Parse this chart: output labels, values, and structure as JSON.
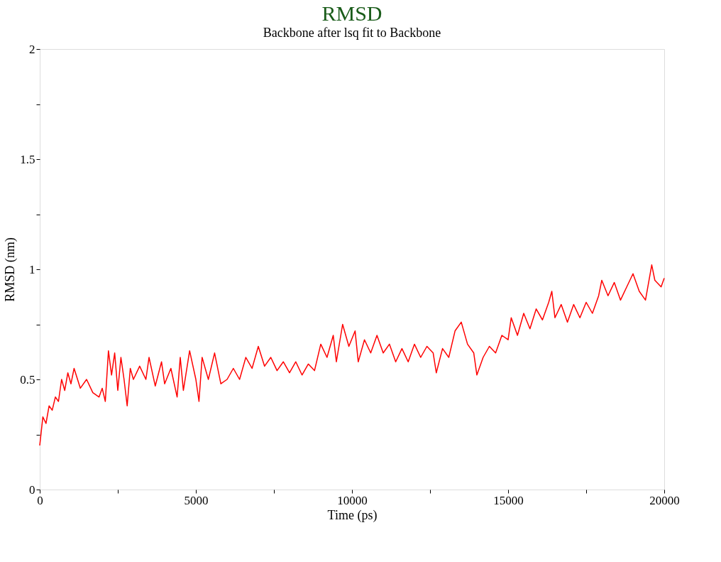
{
  "chart_data": {
    "type": "line",
    "title": "RMSD",
    "subtitle": "Backbone after lsq fit to Backbone",
    "xlabel": "Time (ps)",
    "ylabel": "RMSD (nm)",
    "xlim": [
      0,
      20000
    ],
    "ylim": [
      0,
      2
    ],
    "xticks": [
      0,
      {
        "value": 2500,
        "label": null
      },
      5000,
      {
        "value": 7500,
        "label": null
      },
      10000,
      {
        "value": 12500,
        "label": null
      },
      15000,
      {
        "value": 17500,
        "label": null
      },
      20000
    ],
    "yticks": [
      0,
      {
        "value": 0.25,
        "label": null
      },
      0.5,
      {
        "value": 0.75,
        "label": null
      },
      1,
      {
        "value": 1.25,
        "label": null
      },
      1.5,
      {
        "value": 1.75,
        "label": null
      },
      2
    ],
    "grid": false,
    "marker": "none",
    "line_style": "solid",
    "x": [
      0,
      100,
      200,
      300,
      400,
      500,
      600,
      700,
      800,
      900,
      1000,
      1100,
      1300,
      1500,
      1700,
      1900,
      2000,
      2100,
      2200,
      2300,
      2400,
      2500,
      2600,
      2700,
      2800,
      2900,
      3000,
      3200,
      3400,
      3500,
      3700,
      3900,
      4000,
      4200,
      4400,
      4500,
      4600,
      4800,
      5000,
      5100,
      5200,
      5400,
      5600,
      5800,
      6000,
      6200,
      6400,
      6600,
      6800,
      7000,
      7200,
      7400,
      7600,
      7800,
      8000,
      8200,
      8400,
      8600,
      8800,
      9000,
      9200,
      9400,
      9500,
      9700,
      9900,
      10100,
      10200,
      10400,
      10600,
      10800,
      11000,
      11200,
      11400,
      11600,
      11800,
      12000,
      12200,
      12400,
      12600,
      12700,
      12900,
      13100,
      13300,
      13500,
      13700,
      13900,
      14000,
      14200,
      14400,
      14600,
      14800,
      15000,
      15100,
      15300,
      15500,
      15700,
      15900,
      16100,
      16300,
      16400,
      16500,
      16700,
      16900,
      17100,
      17300,
      17500,
      17700,
      17900,
      18000,
      18200,
      18400,
      18600,
      18800,
      19000,
      19200,
      19400,
      19600,
      19700,
      19900,
      20000
    ],
    "series": [
      {
        "color": "#ff0000",
        "values": [
          0.2,
          0.33,
          0.3,
          0.38,
          0.36,
          0.42,
          0.4,
          0.5,
          0.45,
          0.53,
          0.48,
          0.55,
          0.46,
          0.5,
          0.44,
          0.42,
          0.46,
          0.4,
          0.63,
          0.52,
          0.62,
          0.45,
          0.6,
          0.5,
          0.38,
          0.55,
          0.5,
          0.56,
          0.5,
          0.6,
          0.47,
          0.58,
          0.48,
          0.55,
          0.42,
          0.6,
          0.45,
          0.63,
          0.5,
          0.4,
          0.6,
          0.5,
          0.62,
          0.48,
          0.5,
          0.55,
          0.5,
          0.6,
          0.55,
          0.65,
          0.56,
          0.6,
          0.54,
          0.58,
          0.53,
          0.58,
          0.52,
          0.57,
          0.54,
          0.66,
          0.6,
          0.7,
          0.58,
          0.75,
          0.65,
          0.72,
          0.58,
          0.68,
          0.62,
          0.7,
          0.62,
          0.66,
          0.58,
          0.64,
          0.58,
          0.66,
          0.6,
          0.65,
          0.62,
          0.53,
          0.64,
          0.6,
          0.72,
          0.76,
          0.66,
          0.62,
          0.52,
          0.6,
          0.65,
          0.62,
          0.7,
          0.68,
          0.78,
          0.7,
          0.8,
          0.73,
          0.82,
          0.77,
          0.85,
          0.9,
          0.78,
          0.84,
          0.76,
          0.84,
          0.78,
          0.85,
          0.8,
          0.88,
          0.95,
          0.88,
          0.94,
          0.86,
          0.92,
          0.98,
          0.9,
          0.86,
          1.02,
          0.95,
          0.92,
          0.96
        ]
      }
    ]
  }
}
